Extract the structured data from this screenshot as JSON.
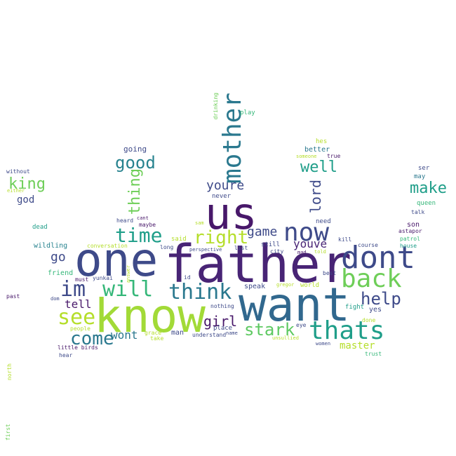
{
  "colors": {
    "dark_purple": "#48186a",
    "purple": "#482475",
    "indigo": "#3e4a89",
    "blue": "#31688e",
    "teal_blue": "#26828e",
    "teal": "#1f9e89",
    "green": "#35b779",
    "light_green": "#6ece58",
    "lime": "#b5de2b",
    "yellow": "#fde725"
  },
  "words": {
    "father": "father",
    "know": "know",
    "want": "want",
    "one": "one",
    "us": "us",
    "dont": "dont",
    "back": "back",
    "thats": "thats",
    "now": "now",
    "mother": "mother",
    "im": "im",
    "will": "will",
    "think": "think",
    "see": "see",
    "come": "come",
    "time": "time",
    "right": "right",
    "good": "good",
    "thing": "thing",
    "help": "help",
    "stark": "stark",
    "make": "make",
    "well": "well",
    "lord": "lord",
    "king": "king",
    "youre": "youre",
    "girl": "girl",
    "game": "game",
    "youve": "youve",
    "go": "go",
    "tell": "tell",
    "wont": "wont",
    "master": "master",
    "god": "god",
    "going": "going",
    "drinking": "drinking",
    "play": "play",
    "hes": "hes",
    "better": "better",
    "someone": "someone",
    "true": "true",
    "ser": "ser",
    "may": "may",
    "queen": "queen",
    "talk": "talk",
    "son": "son",
    "astapor": "astapor",
    "patrol": "patrol",
    "house": "house",
    "without": "without",
    "either": "either",
    "dead": "dead",
    "wildling": "wildling",
    "conversation": "conversation",
    "friend": "friend",
    "must": "must",
    "yunkai": "yunkai",
    "past": "past",
    "dom": "dom",
    "people": "people",
    "little_birds": "little birds",
    "hear": "hear",
    "north": "north",
    "first": "first",
    "never": "never",
    "sam": "sam",
    "heard": "heard",
    "cant": "cant",
    "maybe": "maybe",
    "said": "said",
    "long": "long",
    "perspective": "perspective",
    "list": "list",
    "still": "still",
    "city": "city",
    "mad": "mad",
    "told": "told",
    "need": "need",
    "kill": "kill",
    "course": "course",
    "best": "best",
    "speak": "speak",
    "gregor": "gregor",
    "world": "world",
    "answer": "answer",
    "id": "id",
    "nothing": "nothing",
    "fight": "fight",
    "yes": "yes",
    "done": "done",
    "grace": "grace",
    "take": "take",
    "man": "man",
    "place": "place",
    "understand": "understand",
    "name": "name",
    "eye": "eye",
    "unsullied": "unsullied",
    "women": "women",
    "trust": "trust"
  }
}
